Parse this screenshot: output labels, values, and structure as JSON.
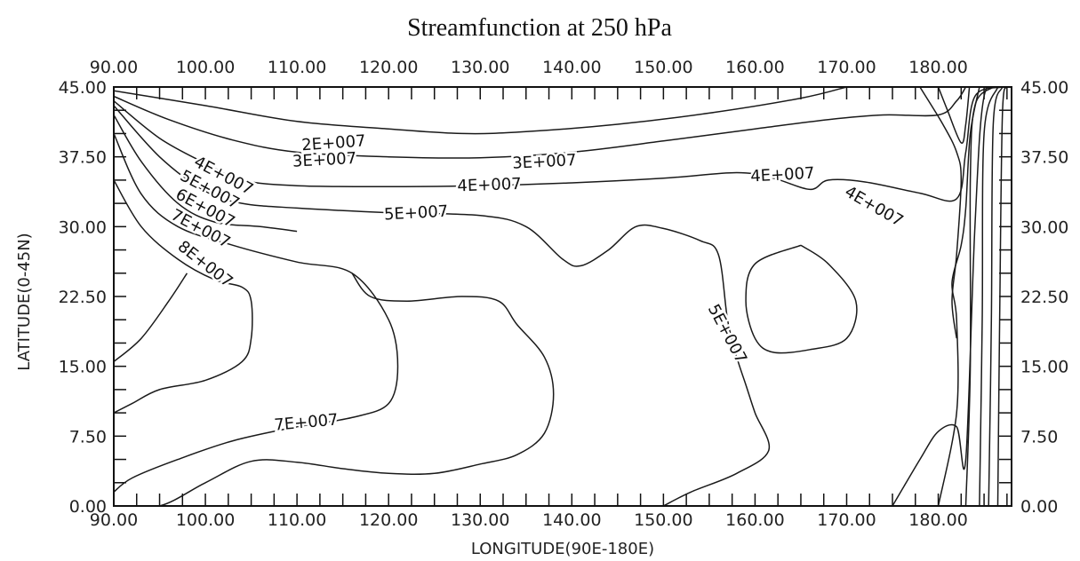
{
  "chart_data": {
    "type": "contour",
    "title": "Streamfunction at 250 hPa",
    "xlabel": "LONGITUDE(90E-180E)",
    "ylabel": "LATITUDE(0-45N)",
    "xlim": [
      90,
      188
    ],
    "ylim": [
      0,
      45
    ],
    "x_ticks": [
      "90.00",
      "100.00",
      "110.00",
      "120.00",
      "130.00",
      "140.00",
      "150.00",
      "160.00",
      "170.00",
      "180.00"
    ],
    "x_tick_values": [
      90,
      100,
      110,
      120,
      130,
      140,
      150,
      160,
      170,
      180
    ],
    "y_ticks": [
      "0.00",
      "7.50",
      "15.00",
      "22.50",
      "30.00",
      "37.50",
      "45.00"
    ],
    "y_tick_values": [
      0,
      7.5,
      15,
      22.5,
      30,
      37.5,
      45
    ],
    "minor_tick_step": 2.5,
    "grid": false,
    "contour_labels": [
      {
        "text": "2E+007",
        "lon": 114,
        "lat": 39.0,
        "angle": -4
      },
      {
        "text": "3E+007",
        "lon": 113,
        "lat": 37.2,
        "angle": -3
      },
      {
        "text": "3E+007",
        "lon": 137,
        "lat": 37.0,
        "angle": -3
      },
      {
        "text": "4E+007",
        "lon": 102,
        "lat": 35.5,
        "angle": 28
      },
      {
        "text": "4E+007",
        "lon": 131,
        "lat": 34.5,
        "angle": -2
      },
      {
        "text": "4E+007",
        "lon": 163,
        "lat": 35.6,
        "angle": -3
      },
      {
        "text": "4E+007",
        "lon": 173,
        "lat": 32.2,
        "angle": 30
      },
      {
        "text": "5E+007",
        "lon": 100.5,
        "lat": 34.0,
        "angle": 28
      },
      {
        "text": "5E+007",
        "lon": 123,
        "lat": 31.5,
        "angle": -3
      },
      {
        "text": "5E+007",
        "lon": 157,
        "lat": 18.5,
        "angle": 62
      },
      {
        "text": "6E+007",
        "lon": 100,
        "lat": 32.0,
        "angle": 28
      },
      {
        "text": "7E+007",
        "lon": 99.5,
        "lat": 29.8,
        "angle": 28
      },
      {
        "text": "7E+007",
        "lon": 111,
        "lat": 9.0,
        "angle": -5
      },
      {
        "text": "8E+007",
        "lon": 100,
        "lat": 26.0,
        "angle": 38
      }
    ],
    "contours": [
      {
        "level": "2E+007",
        "points": [
          [
            90,
            44.6
          ],
          [
            100,
            43.0
          ],
          [
            110,
            41.3
          ],
          [
            120,
            40.5
          ],
          [
            128,
            40.0
          ],
          [
            135,
            40.2
          ],
          [
            145,
            41.0
          ],
          [
            155,
            42.2
          ],
          [
            165,
            43.8
          ],
          [
            170,
            45
          ]
        ]
      },
      {
        "level": "3E+007",
        "points": [
          [
            90,
            44.0
          ],
          [
            96,
            41.5
          ],
          [
            103,
            39.3
          ],
          [
            110,
            38.0
          ],
          [
            120,
            37.5
          ],
          [
            130,
            37.4
          ],
          [
            140,
            38.0
          ],
          [
            150,
            39.2
          ],
          [
            160,
            40.5
          ],
          [
            168,
            41.5
          ],
          [
            174,
            42.0
          ],
          [
            180,
            42.0
          ],
          [
            182,
            43.5
          ],
          [
            183,
            45
          ]
        ]
      },
      {
        "level": "4E+007",
        "points": [
          [
            90,
            43.5
          ],
          [
            95,
            39.5
          ],
          [
            100,
            36.8
          ],
          [
            104,
            35.0
          ],
          [
            110,
            34.4
          ],
          [
            120,
            34.3
          ],
          [
            130,
            34.4
          ],
          [
            140,
            34.7
          ],
          [
            150,
            35.2
          ],
          [
            158,
            35.8
          ],
          [
            162,
            35.2
          ],
          [
            166,
            34.0
          ],
          [
            168,
            35.0
          ],
          [
            172,
            34.8
          ],
          [
            178,
            33.6
          ],
          [
            182,
            33.0
          ],
          [
            183,
            38.0
          ],
          [
            184,
            44.0
          ],
          [
            187,
            45
          ]
        ]
      },
      {
        "level": "4E+007b",
        "points": [
          [
            180,
            45
          ],
          [
            181,
            42.5
          ],
          [
            182.5,
            39.0
          ],
          [
            183,
            41.0
          ],
          [
            183.4,
            45
          ]
        ]
      },
      {
        "level": "5E+007",
        "points": [
          [
            90,
            43.0
          ],
          [
            95,
            37.5
          ],
          [
            100,
            33.8
          ],
          [
            104,
            32.5
          ],
          [
            110,
            32.0
          ],
          [
            120,
            31.5
          ],
          [
            130,
            31.2
          ],
          [
            135,
            30.0
          ],
          [
            139,
            26.5
          ],
          [
            141,
            25.8
          ],
          [
            144,
            27.5
          ],
          [
            147,
            30.0
          ],
          [
            150,
            29.8
          ],
          [
            154,
            28.5
          ],
          [
            156,
            27.0
          ],
          [
            157,
            20.0
          ],
          [
            158,
            16.0
          ],
          [
            159,
            13.0
          ],
          [
            160,
            10.0
          ],
          [
            161.5,
            6.0
          ],
          [
            158,
            3.5
          ],
          [
            153,
            1.5
          ],
          [
            150,
            0
          ]
        ]
      },
      {
        "level": "5E+007-right",
        "points": [
          [
            175,
            0
          ],
          [
            178,
            5.0
          ],
          [
            180,
            8.0
          ],
          [
            182,
            8.5
          ],
          [
            183,
            5.0
          ],
          [
            184,
            30.0
          ],
          [
            185,
            44.0
          ],
          [
            187,
            45
          ]
        ]
      },
      {
        "level": "6E+007",
        "points": [
          [
            90,
            42.0
          ],
          [
            93,
            37.0
          ],
          [
            97,
            32.5
          ],
          [
            101,
            30.5
          ],
          [
            106,
            30.0
          ],
          [
            110,
            29.5
          ]
        ]
      },
      {
        "level": "7E+007",
        "points": [
          [
            90,
            40.0
          ],
          [
            93,
            33.5
          ],
          [
            97,
            30.0
          ],
          [
            103,
            28.0
          ],
          [
            110,
            26.2
          ],
          [
            116,
            25.0
          ],
          [
            120,
            20.0
          ],
          [
            121,
            15.0
          ],
          [
            120,
            11.0
          ],
          [
            116,
            9.5
          ],
          [
            110,
            8.5
          ],
          [
            103,
            7.0
          ],
          [
            97,
            5.0
          ],
          [
            92,
            3.0
          ],
          [
            90,
            1.5
          ]
        ]
      },
      {
        "level": "8E+007",
        "points": [
          [
            90,
            35.0
          ],
          [
            93,
            30.0
          ],
          [
            97,
            26.5
          ],
          [
            101,
            24.3
          ],
          [
            104,
            23.5
          ],
          [
            105,
            22.0
          ],
          [
            105,
            18.0
          ],
          [
            104,
            15.5
          ],
          [
            100,
            13.5
          ],
          [
            95,
            12.5
          ],
          [
            92,
            11.0
          ],
          [
            90,
            10.0
          ]
        ]
      },
      {
        "level": "8E+007-outer",
        "points": [
          [
            90,
            15.5
          ],
          [
            93,
            18.0
          ],
          [
            96,
            22.0
          ],
          [
            98,
            25.0
          ]
        ]
      },
      {
        "level": "5E+007-inner",
        "points": [
          [
            90,
            0
          ],
          [
            95,
            0
          ],
          [
            100,
            2.5
          ],
          [
            105,
            4.8
          ],
          [
            110,
            4.7
          ],
          [
            115,
            4.0
          ],
          [
            120,
            3.5
          ],
          [
            125,
            3.5
          ],
          [
            130,
            4.5
          ],
          [
            134,
            5.5
          ],
          [
            137,
            7.8
          ],
          [
            138,
            12.0
          ],
          [
            137,
            16.0
          ],
          [
            134,
            19.5
          ],
          [
            132,
            22.0
          ],
          [
            128,
            22.5
          ],
          [
            122,
            22.0
          ],
          [
            118,
            22.5
          ],
          [
            116,
            25.0
          ]
        ]
      },
      {
        "level": "closed-high",
        "points": [
          [
            165,
            28.0
          ],
          [
            160,
            26.0
          ],
          [
            159,
            22.0
          ],
          [
            160,
            18.0
          ],
          [
            162,
            16.5
          ],
          [
            166,
            16.8
          ],
          [
            170,
            18.0
          ],
          [
            171,
            22.0
          ],
          [
            168,
            26.0
          ],
          [
            165,
            28.0
          ]
        ]
      },
      {
        "level": "right-edge-1",
        "points": [
          [
            183,
            0
          ],
          [
            183.5,
            15.0
          ],
          [
            183.5,
            35.0
          ],
          [
            184,
            43.0
          ],
          [
            186,
            45
          ]
        ]
      },
      {
        "level": "right-edge-2",
        "points": [
          [
            184.5,
            0
          ],
          [
            184.8,
            20.0
          ],
          [
            185,
            40.0
          ],
          [
            186.5,
            45
          ]
        ]
      },
      {
        "level": "right-edge-3",
        "points": [
          [
            185.5,
            0
          ],
          [
            185.8,
            20.0
          ],
          [
            186,
            41.0
          ],
          [
            187,
            45
          ]
        ]
      },
      {
        "level": "right-edge-4",
        "points": [
          [
            186.5,
            0
          ],
          [
            186.7,
            20.0
          ],
          [
            187,
            42.0
          ],
          [
            187.5,
            45
          ]
        ]
      },
      {
        "level": "right-mid",
        "points": [
          [
            180,
            0
          ],
          [
            182,
            10.0
          ],
          [
            182,
            20.0
          ],
          [
            181.5,
            24.0
          ],
          [
            182.5,
            28.0
          ],
          [
            183,
            32.0
          ],
          [
            183.5,
            40.0
          ],
          [
            184.5,
            45
          ]
        ]
      },
      {
        "level": "right-inner",
        "points": [
          [
            178,
            45
          ],
          [
            180.5,
            41.0
          ],
          [
            182,
            38.0
          ],
          [
            182.5,
            35.0
          ],
          [
            182,
            27.0
          ],
          [
            181.5,
            22.0
          ],
          [
            182,
            18.0
          ]
        ]
      }
    ]
  }
}
